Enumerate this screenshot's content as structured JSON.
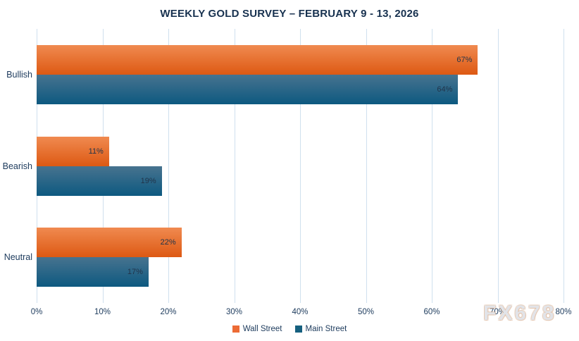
{
  "title": "WEEKLY GOLD SURVEY – FEBRUARY 9 - 13, 2026",
  "watermark": "FX678",
  "chart_data": {
    "type": "bar",
    "orientation": "horizontal",
    "title": "WEEKLY GOLD SURVEY – FEBRUARY 9 - 13, 2026",
    "categories": [
      "Bullish",
      "Bearish",
      "Neutral"
    ],
    "series": [
      {
        "name": "Wall Street",
        "color": "#ec6b35",
        "gradient": [
          "#f08a50",
          "#dd5913"
        ],
        "values": [
          67,
          11,
          22
        ],
        "value_labels": [
          "67%",
          "11%",
          "22%"
        ]
      },
      {
        "name": "Main Street",
        "color": "#16607f",
        "gradient": [
          "#47738f",
          "#0d5980"
        ],
        "values": [
          64,
          19,
          17
        ],
        "value_labels": [
          "64%",
          "19%",
          "17%"
        ]
      }
    ],
    "x_ticks": [
      "0%",
      "10%",
      "20%",
      "30%",
      "40%",
      "50%",
      "60%",
      "70%",
      "80%"
    ],
    "xlim": [
      0,
      80
    ],
    "xlabel": "",
    "ylabel": "",
    "grid": "vertical",
    "legend_position": "bottom",
    "label_color": "#1c3a5c",
    "gridline_color": "#cfe0ee",
    "value_label_color": "#21344a"
  }
}
